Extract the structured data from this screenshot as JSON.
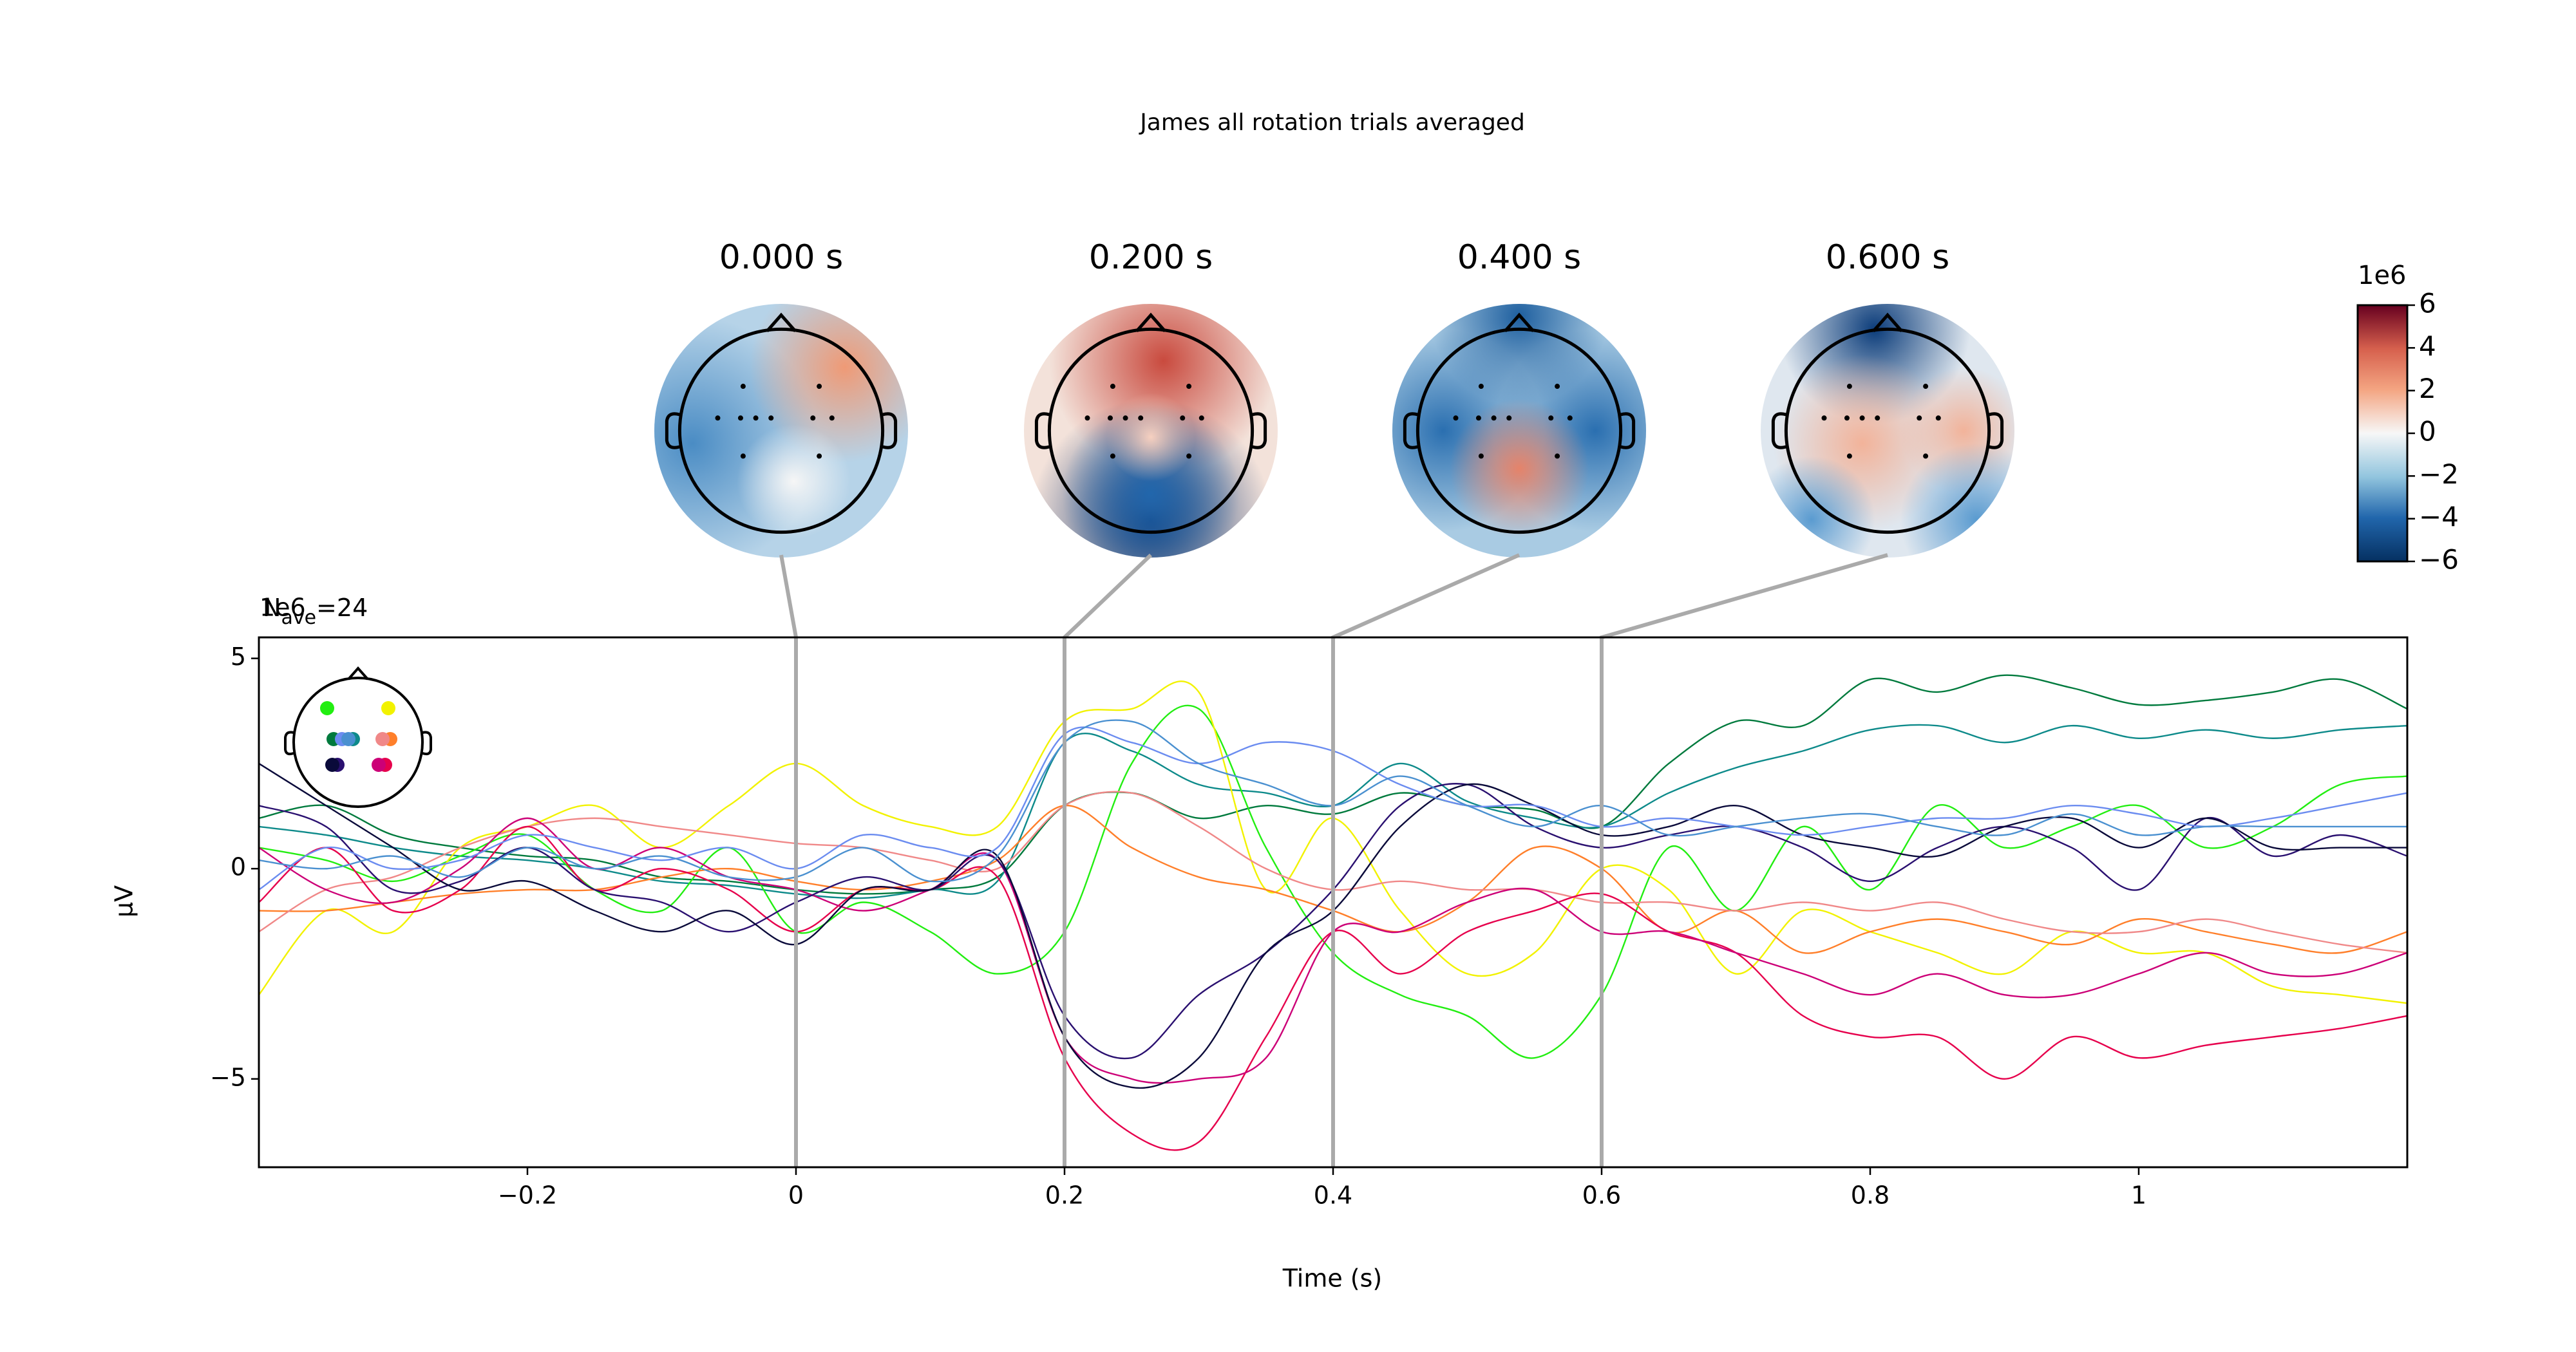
{
  "chart_data": {
    "type": "line",
    "title": "James all rotation trials averaged",
    "xlabel": "Time (s)",
    "ylabel": "µV",
    "offset_text": "1e6",
    "nave_symbol": "N",
    "nave_subscript": "ave",
    "nave_value": "=24",
    "xlim": [
      -0.4,
      1.2
    ],
    "ylim": [
      -7.1,
      5.5
    ],
    "xticks": [
      {
        "value": -0.2,
        "label": "−0.2"
      },
      0.0,
      0.2,
      0.4,
      0.6,
      0.8,
      1.0
    ],
    "yticks": [
      {
        "value": -5,
        "label": "−5"
      },
      0,
      5
    ],
    "x": [
      -0.4,
      -0.35,
      -0.3,
      -0.25,
      -0.2,
      -0.15,
      -0.1,
      -0.05,
      0,
      0.05,
      0.1,
      0.15,
      0.2,
      0.25,
      0.3,
      0.35,
      0.4,
      0.45,
      0.5,
      0.55,
      0.6,
      0.65,
      0.7,
      0.75,
      0.8,
      0.85,
      0.9,
      0.95,
      1.0,
      1.05,
      1.1,
      1.15,
      1.2
    ],
    "series": [
      {
        "color": "#007a3d",
        "values": [
          1.2,
          1.5,
          0.8,
          0.5,
          0.3,
          0.2,
          -0.2,
          -0.3,
          -0.5,
          -0.6,
          -0.5,
          -0.2,
          1.5,
          1.8,
          1.2,
          1.5,
          1.3,
          1.8,
          1.5,
          1.4,
          1.0,
          2.5,
          3.5,
          3.4,
          4.5,
          4.2,
          4.6,
          4.3,
          3.9,
          4.0,
          4.2,
          4.5,
          3.8
        ]
      },
      {
        "color": "#0d8a8a",
        "values": [
          1.0,
          0.8,
          0.5,
          0.3,
          0.2,
          0.0,
          -0.3,
          -0.4,
          -0.6,
          -0.7,
          -0.5,
          -0.3,
          3.0,
          2.8,
          2.0,
          1.8,
          1.5,
          2.5,
          1.6,
          1.2,
          1.0,
          1.8,
          2.4,
          2.8,
          3.3,
          3.4,
          3.0,
          3.4,
          3.1,
          3.3,
          3.1,
          3.3,
          3.4
        ]
      },
      {
        "color": "#22ee11",
        "values": [
          0.5,
          0.2,
          -0.3,
          0.3,
          0.8,
          -0.5,
          -1.0,
          0.5,
          -1.5,
          -0.8,
          -1.5,
          -2.5,
          -1.5,
          2.5,
          3.8,
          0.5,
          -2.0,
          -3.0,
          -3.5,
          -4.5,
          -3.0,
          0.5,
          -1.0,
          1.0,
          -0.5,
          1.5,
          0.5,
          1.0,
          1.5,
          0.5,
          1.0,
          2.0,
          2.2
        ]
      },
      {
        "color": "#f2f200",
        "values": [
          -3.0,
          -1.0,
          -1.5,
          0.5,
          1.0,
          1.5,
          0.5,
          1.5,
          2.5,
          1.5,
          1.0,
          1.0,
          3.5,
          3.8,
          4.2,
          -0.5,
          1.2,
          -1.0,
          -2.5,
          -2.0,
          0.0,
          -0.5,
          -2.5,
          -1.0,
          -1.5,
          -2.0,
          -2.5,
          -1.5,
          -2.0,
          -2.0,
          -2.8,
          -3.0,
          -3.2
        ]
      },
      {
        "color": "#ff7f2a",
        "values": [
          -1.0,
          -1.0,
          -0.8,
          -0.6,
          -0.5,
          -0.5,
          -0.2,
          0.0,
          -0.3,
          -0.5,
          -0.3,
          0.2,
          1.5,
          0.5,
          -0.2,
          -0.5,
          -1.0,
          -1.5,
          -0.8,
          0.5,
          0.0,
          -1.5,
          -1.0,
          -2.0,
          -1.5,
          -1.2,
          -1.5,
          -1.8,
          -1.2,
          -1.5,
          -1.8,
          -2.0,
          -1.5
        ]
      },
      {
        "color": "#f08888",
        "values": [
          -1.5,
          -0.5,
          -0.2,
          0.5,
          1.0,
          1.2,
          1.0,
          0.8,
          0.6,
          0.5,
          0.2,
          0.0,
          1.5,
          1.8,
          1.0,
          0.0,
          -0.5,
          -0.3,
          -0.5,
          -0.5,
          -0.8,
          -0.8,
          -1.0,
          -0.8,
          -1.0,
          -0.8,
          -1.2,
          -1.5,
          -1.5,
          -1.2,
          -1.5,
          -1.8,
          -2.0
        ]
      },
      {
        "color": "#e6004c",
        "values": [
          -0.8,
          0.5,
          -1.0,
          -0.5,
          1.0,
          -0.5,
          0.0,
          -0.5,
          -1.5,
          -0.5,
          -0.5,
          -0.2,
          -4.5,
          -6.3,
          -6.5,
          -4.0,
          -1.5,
          -2.5,
          -1.5,
          -1.0,
          -0.6,
          -1.5,
          -2.0,
          -3.5,
          -4.0,
          -4.0,
          -5.0,
          -4.0,
          -4.5,
          -4.2,
          -4.0,
          -3.8,
          -3.5
        ]
      },
      {
        "color": "#cc0077",
        "values": [
          0.5,
          -0.5,
          -0.8,
          0.0,
          1.2,
          0.0,
          0.5,
          -0.2,
          -0.5,
          -1.0,
          -0.5,
          0.2,
          -4.0,
          -5.0,
          -5.0,
          -4.5,
          -1.5,
          -1.5,
          -0.8,
          -0.5,
          -1.5,
          -1.5,
          -2.0,
          -2.5,
          -3.0,
          -2.5,
          -3.0,
          -3.0,
          -2.5,
          -2.0,
          -2.5,
          -2.5,
          -2.0
        ]
      },
      {
        "color": "#2a1070",
        "values": [
          1.5,
          1.0,
          -0.5,
          -0.3,
          0.5,
          -0.5,
          -0.8,
          -1.5,
          -0.8,
          -0.2,
          -0.5,
          0.2,
          -3.5,
          -4.5,
          -3.0,
          -2.0,
          -0.5,
          1.5,
          2.0,
          1.0,
          0.5,
          0.8,
          1.0,
          0.5,
          -0.3,
          0.5,
          1.0,
          0.5,
          -0.5,
          1.2,
          0.3,
          0.8,
          0.3
        ]
      },
      {
        "color": "#0a0a3a",
        "values": [
          2.5,
          1.5,
          0.5,
          -0.5,
          -0.3,
          -1.0,
          -1.5,
          -1.0,
          -1.8,
          -0.5,
          -0.5,
          0.3,
          -4.0,
          -5.2,
          -4.5,
          -2.0,
          -1.0,
          1.0,
          2.0,
          1.5,
          0.8,
          1.0,
          1.5,
          0.8,
          0.5,
          0.3,
          1.0,
          1.2,
          0.5,
          1.2,
          0.5,
          0.5,
          0.5
        ]
      },
      {
        "color": "#6b8cf0",
        "values": [
          -0.5,
          0.5,
          0.0,
          0.2,
          0.8,
          0.5,
          0.2,
          0.5,
          0.0,
          0.8,
          0.5,
          0.5,
          3.2,
          3.0,
          2.5,
          3.0,
          2.8,
          2.0,
          1.5,
          1.5,
          1.0,
          1.2,
          1.0,
          0.8,
          1.0,
          1.2,
          1.2,
          1.5,
          1.3,
          1.0,
          1.2,
          1.5,
          1.8
        ]
      },
      {
        "color": "#4a90d0",
        "values": [
          0.2,
          0.0,
          0.3,
          -0.2,
          0.5,
          0.0,
          0.3,
          -0.2,
          -0.2,
          0.5,
          -0.3,
          0.3,
          3.0,
          3.5,
          2.5,
          2.0,
          1.5,
          2.2,
          1.5,
          1.0,
          1.5,
          0.8,
          1.0,
          1.2,
          1.3,
          1.0,
          0.8,
          1.3,
          0.8,
          1.0,
          1.0,
          1.0,
          1.0
        ]
      }
    ],
    "topomaps": [
      {
        "title": "0.000 s",
        "time": 0.0
      },
      {
        "title": "0.200 s",
        "time": 0.2
      },
      {
        "title": "0.400 s",
        "time": 0.4
      },
      {
        "title": "0.600 s",
        "time": 0.6
      }
    ],
    "colorbar": {
      "label": "1e6",
      "lim": [
        -6,
        6
      ],
      "ticks": [
        6,
        4,
        2,
        0,
        {
          "value": -2,
          "label": "−2"
        },
        {
          "value": -4,
          "label": "−4"
        },
        {
          "value": -6,
          "label": "−6"
        }
      ]
    }
  }
}
